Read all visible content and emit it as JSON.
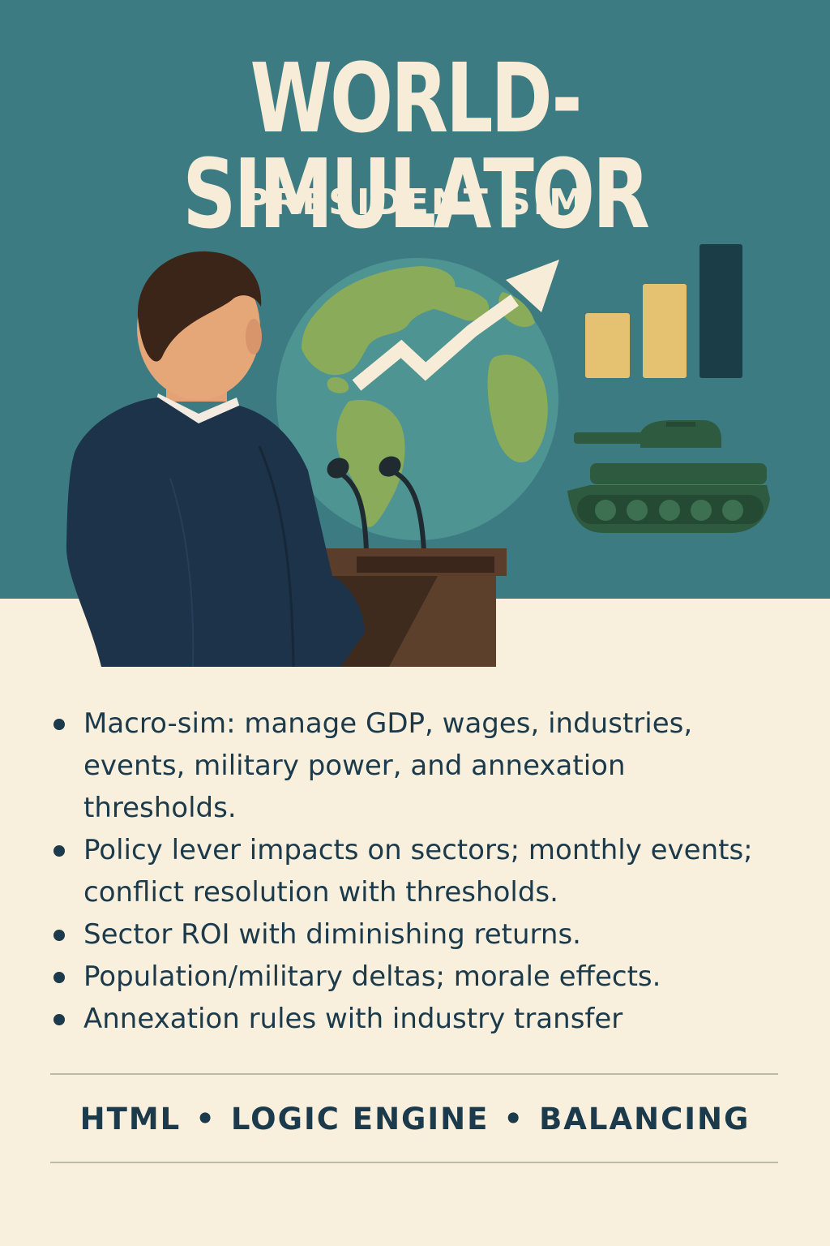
{
  "header": {
    "title": "WORLD-SIMULATOR",
    "subtitle": "PRESIDENT SIM"
  },
  "illustration": {
    "icons": [
      "president-at-podium-icon",
      "globe-icon",
      "trend-arrow-icon",
      "bar-chart-icon",
      "tank-icon",
      "microphone-icon"
    ],
    "chart_levels": [
      0.48,
      0.69,
      1.0
    ]
  },
  "features": [
    "Macro-sim: manage GDP, wages, industries, events, military power, and annexation thresholds.",
    "Policy lever impacts on sectors; monthly events; conflict resolution with thresholds.",
    "Sector ROI with diminishing returns.",
    "Population/military deltas; morale effects.",
    "Annexation rules with industry transfer"
  ],
  "footer": {
    "tags": [
      "HTML",
      "LOGIC ENGINE",
      "BALANCING"
    ],
    "separator": "•"
  },
  "colors": {
    "teal_background": "#3c7b82",
    "cream_background": "#f8efdc",
    "navy_text": "#1b3a4b",
    "title_cream": "#f7ecd7",
    "suit_navy": "#1d3349",
    "podium_brown": "#4e3626",
    "globe_ocean": "#4e9493",
    "globe_land": "#8aab5a",
    "bar_gold": "#e5c271",
    "bar_dark": "#1b3d48",
    "tank_green": "#2e5a3f"
  }
}
